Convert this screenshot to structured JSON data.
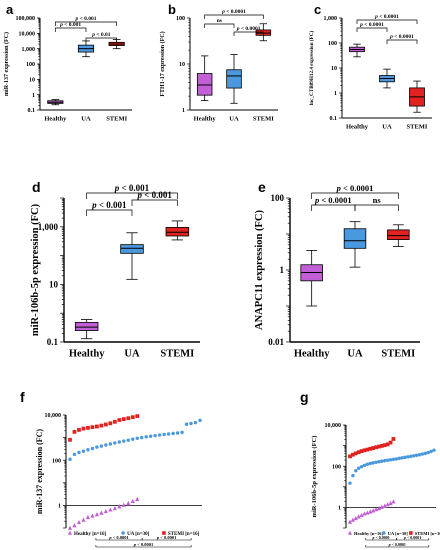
{
  "figure": {
    "colors": {
      "healthy": "#c35fd6",
      "ua": "#4a98de",
      "stemi": "#e0231f",
      "axis": "#000000"
    }
  },
  "chart_data": [
    {
      "id": "a",
      "panel_label": "a",
      "type": "box",
      "scale": "log",
      "ylabel": "miR-137 expression (FC)",
      "ylim": [
        0.1,
        100000
      ],
      "yticks": [
        0.1,
        1,
        10,
        100,
        1000,
        10000,
        100000
      ],
      "yticklabels": [
        "0.1",
        "1",
        "10",
        "100",
        "1,000",
        "10,000",
        "100,000"
      ],
      "categories": [
        "Healthy",
        "UA",
        "STEMI"
      ],
      "boxes": [
        {
          "category": "Healthy",
          "whisker_low": 0.22,
          "q1": 0.27,
          "median": 0.32,
          "q3": 0.4,
          "whisker_high": 0.48
        },
        {
          "category": "UA",
          "whisker_low": 300,
          "q1": 600,
          "median": 1000,
          "q3": 1700,
          "whisker_high": 3200
        },
        {
          "category": "STEMI",
          "whisker_low": 1000,
          "q1": 1600,
          "median": 2000,
          "q3": 2600,
          "whisker_high": 4000
        }
      ],
      "annotations": [
        {
          "between": [
            "Healthy",
            "STEMI"
          ],
          "text": "p < 0.001"
        },
        {
          "between": [
            "Healthy",
            "UA"
          ],
          "text": "p < 0.001"
        },
        {
          "between": [
            "UA",
            "STEMI"
          ],
          "text": "p < 0.01"
        }
      ]
    },
    {
      "id": "b",
      "panel_label": "b",
      "type": "box",
      "scale": "log",
      "ylabel": "FTH1-17 expression (FC)",
      "ylim": [
        1,
        100
      ],
      "yticks": [
        1,
        10,
        100
      ],
      "yticklabels": [
        "1",
        "10",
        "100"
      ],
      "categories": [
        "Healthy",
        "UA",
        "STEMI"
      ],
      "boxes": [
        {
          "category": "Healthy",
          "whisker_low": 1.6,
          "q1": 2.1,
          "median": 3.5,
          "q3": 6.2,
          "whisker_high": 15
        },
        {
          "category": "UA",
          "whisker_low": 1.4,
          "q1": 3,
          "median": 5.5,
          "q3": 7.5,
          "whisker_high": 16
        },
        {
          "category": "STEMI",
          "whisker_low": 32,
          "q1": 42,
          "median": 47,
          "q3": 55,
          "whisker_high": 75
        }
      ],
      "annotations": [
        {
          "between": [
            "Healthy",
            "STEMI"
          ],
          "text": "p < 0.0001"
        },
        {
          "between": [
            "Healthy",
            "UA"
          ],
          "text": "ns"
        },
        {
          "between": [
            "UA",
            "STEMI"
          ],
          "text": "p < 0.0001"
        }
      ]
    },
    {
      "id": "c",
      "panel_label": "c",
      "type": "box",
      "scale": "log",
      "ylabel": "lnc_CTB89H12.4 expression (FC)",
      "ylim": [
        0.1,
        1000
      ],
      "yticks": [
        0.1,
        1,
        10,
        100,
        1000
      ],
      "yticklabels": [
        "0.1",
        "1",
        "10",
        "100",
        "1,000"
      ],
      "categories": [
        "Healthy",
        "UA",
        "STEMI"
      ],
      "boxes": [
        {
          "category": "Healthy",
          "whisker_low": 28,
          "q1": 45,
          "median": 55,
          "q3": 68,
          "whisker_high": 90
        },
        {
          "category": "UA",
          "whisker_low": 1.6,
          "q1": 2.8,
          "median": 3.8,
          "q3": 5,
          "whisker_high": 9
        },
        {
          "category": "STEMI",
          "whisker_low": 0.17,
          "q1": 0.3,
          "median": 0.7,
          "q3": 1.6,
          "whisker_high": 3
        }
      ],
      "annotations": [
        {
          "between": [
            "Healthy",
            "STEMI"
          ],
          "text": "p < 0.0001"
        },
        {
          "between": [
            "Healthy",
            "UA"
          ],
          "text": "p < 0.0001"
        },
        {
          "between": [
            "UA",
            "STEMI"
          ],
          "text": "p < 0.0001"
        }
      ]
    },
    {
      "id": "d",
      "panel_label": "d",
      "type": "box",
      "scale": "log",
      "ylabel": "miR-106b-5p expression (FC)",
      "ylim": [
        0.1,
        10000
      ],
      "yticks": [
        0.1,
        10,
        1000
      ],
      "yticklabels": [
        "0.1",
        "10",
        "1,000"
      ],
      "categories": [
        "Healthy",
        "UA",
        "STEMI"
      ],
      "boxes": [
        {
          "category": "Healthy",
          "whisker_low": 0.13,
          "q1": 0.25,
          "median": 0.33,
          "q3": 0.48,
          "whisker_high": 0.6
        },
        {
          "category": "UA",
          "whisker_low": 15,
          "q1": 120,
          "median": 180,
          "q3": 240,
          "whisker_high": 620
        },
        {
          "category": "STEMI",
          "whisker_low": 350,
          "q1": 480,
          "median": 650,
          "q3": 950,
          "whisker_high": 1600
        }
      ],
      "annotations": [
        {
          "between": [
            "Healthy",
            "STEMI"
          ],
          "text": "p < 0.001"
        },
        {
          "between": [
            "Healthy",
            "UA"
          ],
          "text": "p < 0.001"
        },
        {
          "between": [
            "UA",
            "STEMI"
          ],
          "text": "p < 0.001"
        }
      ]
    },
    {
      "id": "e",
      "panel_label": "e",
      "type": "box",
      "scale": "log",
      "ylabel": "ANAPC11 expression (FC)",
      "ylim": [
        0.01,
        100
      ],
      "yticks": [
        0.01,
        1,
        100
      ],
      "yticklabels": [
        "0.01",
        "1",
        "100"
      ],
      "categories": [
        "Healthy",
        "UA",
        "STEMI"
      ],
      "boxes": [
        {
          "category": "Healthy",
          "whisker_low": 0.1,
          "q1": 0.5,
          "median": 0.85,
          "q3": 1.4,
          "whisker_high": 3.5
        },
        {
          "category": "UA",
          "whisker_low": 1.2,
          "q1": 4,
          "median": 6.5,
          "q3": 14,
          "whisker_high": 22
        },
        {
          "category": "STEMI",
          "whisker_low": 4.5,
          "q1": 7,
          "median": 9,
          "q3": 13,
          "whisker_high": 18
        }
      ],
      "annotations": [
        {
          "between": [
            "Healthy",
            "STEMI"
          ],
          "text": "p < 0.0001"
        },
        {
          "between": [
            "Healthy",
            "UA"
          ],
          "text": "p < 0.0001"
        },
        {
          "between": [
            "UA",
            "STEMI"
          ],
          "text": "ns"
        }
      ]
    },
    {
      "id": "f",
      "panel_label": "f",
      "type": "scatter",
      "scale": "log",
      "ylabel": "miR-137 expression (FC)",
      "ylim": [
        0.1,
        10000
      ],
      "yticks": [
        1,
        100,
        10000
      ],
      "yticklabels": [
        "1",
        "100",
        "10,000"
      ],
      "x_count": 30,
      "legend": [
        "Healthy [n=16]",
        "UA [n=30]",
        "STEMI [n=16]"
      ],
      "series": [
        {
          "name": "Healthy [n=16]",
          "marker": "triangle",
          "color": "healthy",
          "values": [
            0.1,
            0.13,
            0.18,
            0.23,
            0.3,
            0.35,
            0.4,
            0.47,
            0.55,
            0.65,
            0.75,
            0.9,
            1.05,
            1.25,
            1.55,
            1.9
          ]
        },
        {
          "name": "UA [n=30]",
          "marker": "circle",
          "color": "ua",
          "values": [
            110,
            180,
            220,
            250,
            290,
            330,
            380,
            420,
            470,
            520,
            580,
            640,
            700,
            770,
            850,
            930,
            1000,
            1080,
            1150,
            1220,
            1300,
            1380,
            1450,
            1520,
            1600,
            1700,
            3900,
            4200,
            4600,
            5800
          ]
        },
        {
          "name": "STEMI [n=16]",
          "marker": "square",
          "color": "stemi",
          "values": [
            800,
            1800,
            2200,
            2500,
            2700,
            2900,
            3100,
            3400,
            3800,
            4300,
            5000,
            6000,
            6600,
            7200,
            8000,
            8900
          ]
        }
      ],
      "annotations": [
        {
          "text": "p < 0.0001",
          "level": 1
        },
        {
          "text": "p < 0.0001",
          "level": 1
        },
        {
          "text": "p < 0.0001",
          "level": 2
        }
      ]
    },
    {
      "id": "g",
      "panel_label": "g",
      "type": "scatter",
      "scale": "log",
      "ylabel": "miR-106b-5p expression (FC)",
      "ylim": [
        0.1,
        10000
      ],
      "yticks": [
        1,
        100,
        10000
      ],
      "yticklabels": [
        "1",
        "100",
        "10,000"
      ],
      "x_count": 30,
      "legend": [
        "Healthy [n=16]",
        "UA [n=30]",
        "STEMI [n=16]"
      ],
      "series": [
        {
          "name": "Healthy [n=16]",
          "marker": "triangle",
          "color": "healthy",
          "values": [
            0.2,
            0.25,
            0.3,
            0.36,
            0.42,
            0.5,
            0.55,
            0.62,
            0.7,
            0.8,
            0.9,
            1.05,
            1.2,
            1.4,
            1.6,
            1.9
          ]
        },
        {
          "name": "UA [n=30]",
          "marker": "circle",
          "color": "ua",
          "values": [
            15,
            35,
            60,
            80,
            95,
            110,
            125,
            135,
            145,
            155,
            165,
            175,
            185,
            195,
            205,
            215,
            225,
            240,
            255,
            270,
            285,
            300,
            320,
            340,
            360,
            390,
            420,
            460,
            520,
            600
          ]
        },
        {
          "name": "STEMI [n=16]",
          "marker": "square",
          "color": "stemi",
          "values": [
            300,
            360,
            420,
            480,
            540,
            590,
            640,
            700,
            760,
            830,
            900,
            970,
            1050,
            1150,
            1400,
            2100
          ]
        }
      ],
      "annotations": [
        {
          "text": "p < 0.0001",
          "level": 1
        },
        {
          "text": "p < 0.0001",
          "level": 1
        },
        {
          "text": "p < 0.0001",
          "level": 2
        }
      ]
    }
  ]
}
